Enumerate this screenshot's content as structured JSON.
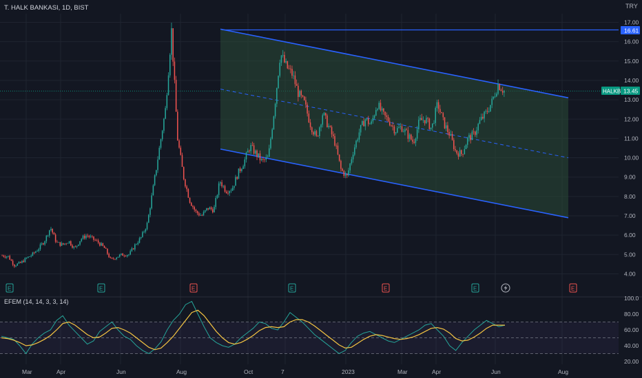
{
  "header": {
    "symbol_title": "T. HALK BANKASI, 1D, BIST",
    "currency": "TRY"
  },
  "colors": {
    "background": "#131722",
    "grid": "#1f2430",
    "up": "#26a69a",
    "down": "#ef5350",
    "channel": "#2962ff",
    "channel_fill": "#2a4a36",
    "indicator_line": "#26a69a",
    "indicator_signal": "#f5c542",
    "text": "#b2b5be",
    "last_price_label": "#089981",
    "hline_label": "#2962ff"
  },
  "price_labels": {
    "hline_value": "16.61",
    "last_symbol": "HALKB",
    "last_value": "13.45"
  },
  "earnings_markers": [
    "E",
    "E",
    "E",
    "E",
    "E",
    "E",
    "E"
  ],
  "dividend_marker": "lightning",
  "indicator": {
    "title": "EFEM (14, 14, 3, 3, 14)"
  },
  "x_axis_labels": [
    "Mar",
    "Apr",
    "Jun",
    "Aug",
    "Oct",
    "7",
    "2023",
    "Mar",
    "Apr",
    "Jun",
    "Aug"
  ],
  "chart_data": [
    {
      "type": "candlestick",
      "title": "T. HALK BANKASI, 1D, BIST",
      "ylabel": "TRY",
      "ylim": [
        3.6,
        17.2
      ],
      "y_ticks": [
        "4.00",
        "5.00",
        "6.00",
        "7.00",
        "8.00",
        "9.00",
        "10.00",
        "11.00",
        "12.00",
        "13.00",
        "14.00",
        "15.00",
        "16.00",
        "17.00"
      ],
      "x_ticks": [
        "Mar",
        "Apr",
        "Jun",
        "Aug",
        "Oct",
        "7",
        "2023",
        "Mar",
        "Apr",
        "Jun",
        "Aug"
      ],
      "last_price": 13.45,
      "horizontal_line": 16.61,
      "price_path_close": [
        4.95,
        4.9,
        4.45,
        4.55,
        4.8,
        5.0,
        5.3,
        5.7,
        6.4,
        5.6,
        5.5,
        5.7,
        5.3,
        5.8,
        6.0,
        5.8,
        5.6,
        5.3,
        4.7,
        4.9,
        5.0,
        5.0,
        5.5,
        5.9,
        6.6,
        8.5,
        10.5,
        12.5,
        16.6,
        11.0,
        9.0,
        7.8,
        7.2,
        7.0,
        7.4,
        7.3,
        8.8,
        8.3,
        8.4,
        9.2,
        9.8,
        10.6,
        10.2,
        9.8,
        10.0,
        12.5,
        15.4,
        14.7,
        14.3,
        13.3,
        12.8,
        11.7,
        11.0,
        12.3,
        11.6,
        10.8,
        9.4,
        9.0,
        10.3,
        11.3,
        12.0,
        11.7,
        12.8,
        12.2,
        11.9,
        11.4,
        11.6,
        11.2,
        10.8,
        11.9,
        12.0,
        11.5,
        12.8,
        11.8,
        11.2,
        10.3,
        10.2,
        11.0,
        11.2,
        11.9,
        12.3,
        12.9,
        13.8,
        13.45
      ],
      "channel": {
        "upper": [
          {
            "x": "Sep",
            "y": 16.65
          },
          {
            "x": "Jul",
            "y": 13.1
          }
        ],
        "lower": [
          {
            "x": "Sep",
            "y": 10.45
          },
          {
            "x": "Jul",
            "y": 6.9
          }
        ],
        "middle_dashed": [
          {
            "x": "Sep",
            "y": 13.55
          },
          {
            "x": "Jul",
            "y": 10.0
          }
        ]
      }
    },
    {
      "type": "line",
      "title": "EFEM (14, 14, 3, 3, 14)",
      "ylim": [
        25,
        102
      ],
      "y_ticks": [
        "20.00",
        "40.00",
        "60.00",
        "80.00",
        "100.0"
      ],
      "reference_lines": [
        70,
        50,
        30
      ],
      "series": [
        {
          "role": "main",
          "values": [
            52,
            50,
            48,
            40,
            30,
            42,
            50,
            56,
            60,
            72,
            78,
            66,
            58,
            50,
            42,
            46,
            58,
            64,
            70,
            60,
            52,
            48,
            40,
            34,
            30,
            36,
            45,
            60,
            72,
            80,
            92,
            96,
            80,
            64,
            50,
            44,
            40,
            38,
            42,
            50,
            56,
            62,
            70,
            68,
            62,
            60,
            70,
            82,
            76,
            70,
            62,
            54,
            48,
            42,
            36,
            30,
            34,
            44,
            52,
            56,
            58,
            54,
            50,
            46,
            44,
            48,
            52,
            56,
            60,
            66,
            68,
            60,
            52,
            40,
            34,
            44,
            52,
            60,
            66,
            72,
            68,
            64,
            66
          ]
        },
        {
          "role": "signal",
          "values": [
            50,
            49,
            47,
            44,
            40,
            41,
            44,
            48,
            53,
            60,
            68,
            70,
            66,
            60,
            54,
            50,
            51,
            56,
            62,
            63,
            60,
            56,
            50,
            44,
            38,
            35,
            37,
            44,
            52,
            62,
            72,
            82,
            85,
            78,
            68,
            58,
            50,
            44,
            42,
            44,
            48,
            53,
            59,
            63,
            64,
            63,
            64,
            70,
            73,
            73,
            70,
            65,
            59,
            53,
            47,
            41,
            37,
            38,
            43,
            48,
            52,
            54,
            53,
            51,
            49,
            48,
            49,
            51,
            54,
            58,
            62,
            63,
            61,
            56,
            49,
            46,
            47,
            51,
            56,
            62,
            66,
            66,
            66
          ]
        }
      ]
    }
  ]
}
